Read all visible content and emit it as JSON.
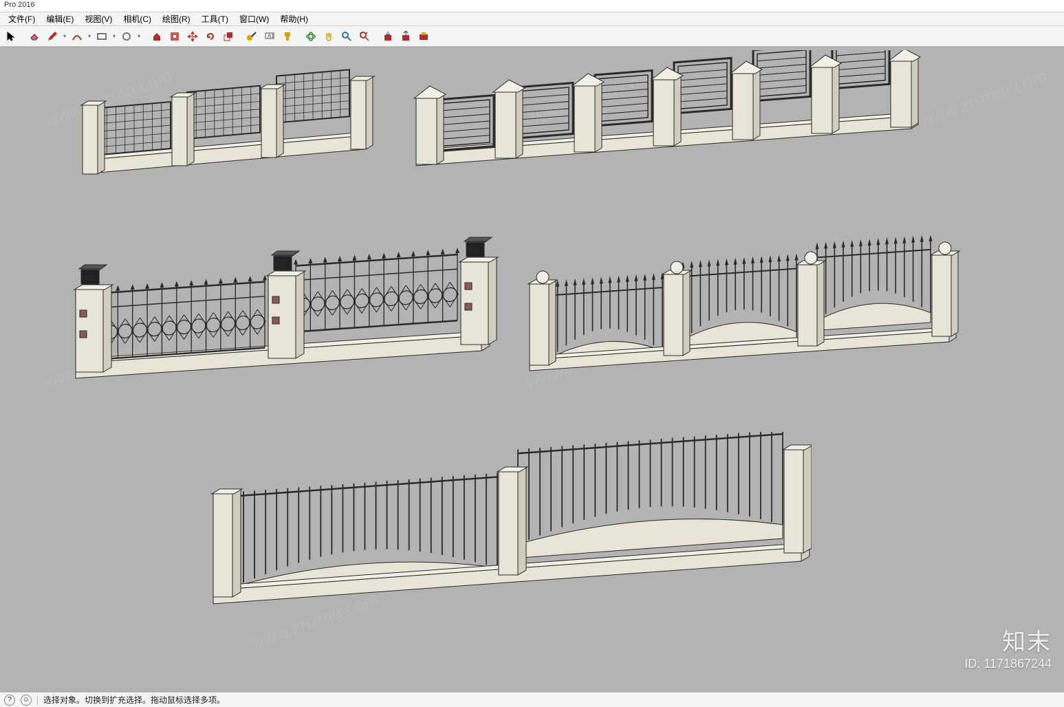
{
  "app": {
    "title_suffix": "Pro 2016"
  },
  "menu": {
    "items": [
      {
        "label": "文件(F)"
      },
      {
        "label": "编辑(E)"
      },
      {
        "label": "视图(V)"
      },
      {
        "label": "相机(C)"
      },
      {
        "label": "绘图(R)"
      },
      {
        "label": "工具(T)"
      },
      {
        "label": "窗口(W)"
      },
      {
        "label": "帮助(H)"
      }
    ]
  },
  "toolbar": {
    "groups": [
      {
        "name": "select",
        "items": [
          {
            "icon": "cursor",
            "color": "#000000",
            "dropdown": false
          }
        ]
      },
      {
        "name": "edit",
        "items": [
          {
            "icon": "eraser",
            "color": "#e85a8c",
            "dropdown": false
          },
          {
            "icon": "pencil",
            "color": "#b02b2b",
            "dropdown": true
          },
          {
            "icon": "arc",
            "color": "#b02b2b",
            "dropdown": true
          },
          {
            "icon": "rect",
            "color": "#777777",
            "dropdown": true
          },
          {
            "icon": "circle",
            "color": "#777777",
            "dropdown": true
          }
        ]
      },
      {
        "name": "modify",
        "items": [
          {
            "icon": "pushpull",
            "color": "#b02b2b",
            "dropdown": false
          },
          {
            "icon": "offset",
            "color": "#b02b2b",
            "dropdown": false
          },
          {
            "icon": "move",
            "color": "#b02b2b",
            "dropdown": false
          },
          {
            "icon": "rotate",
            "color": "#b02b2b",
            "dropdown": false
          },
          {
            "icon": "scale",
            "color": "#b02b2b",
            "dropdown": false
          }
        ]
      },
      {
        "name": "measure",
        "items": [
          {
            "icon": "tape",
            "color": "#d9a400",
            "dropdown": false
          },
          {
            "icon": "text-label",
            "color": "#555555",
            "dropdown": false
          },
          {
            "icon": "paint",
            "color": "#d9a400",
            "dropdown": false
          }
        ]
      },
      {
        "name": "camera",
        "items": [
          {
            "icon": "orbit",
            "color": "#2a8a2a",
            "dropdown": false
          },
          {
            "icon": "pan",
            "color": "#d9a400",
            "dropdown": false
          },
          {
            "icon": "zoom",
            "color": "#2a6fb0",
            "dropdown": false
          },
          {
            "icon": "zoom-ext",
            "color": "#b02b2b",
            "dropdown": false
          }
        ]
      },
      {
        "name": "warehouse",
        "items": [
          {
            "icon": "wh-get",
            "color": "#b02b2b",
            "dropdown": false
          },
          {
            "icon": "wh-send",
            "color": "#b02b2b",
            "dropdown": false
          },
          {
            "icon": "ext",
            "color": "#b02b2b",
            "dropdown": false
          }
        ]
      }
    ]
  },
  "status": {
    "hint": "选择对象。切换到扩充选择。拖动鼠标选择多项。"
  },
  "watermark": {
    "brand": "知末",
    "id_label": "ID: 1171867244",
    "diag_text": "www.znzmo.com"
  },
  "scene": {
    "background": "#b3b3b3",
    "pillar_fill": "#e8e4d8",
    "pillar_stroke": "#2a2a2a",
    "iron_stroke": "#2a2a2a",
    "wall_fill": "#e8e4d8",
    "lamp_fill": "#222222",
    "globe_fill": "#f0eee6",
    "accent_red": "#8a5a5a"
  }
}
